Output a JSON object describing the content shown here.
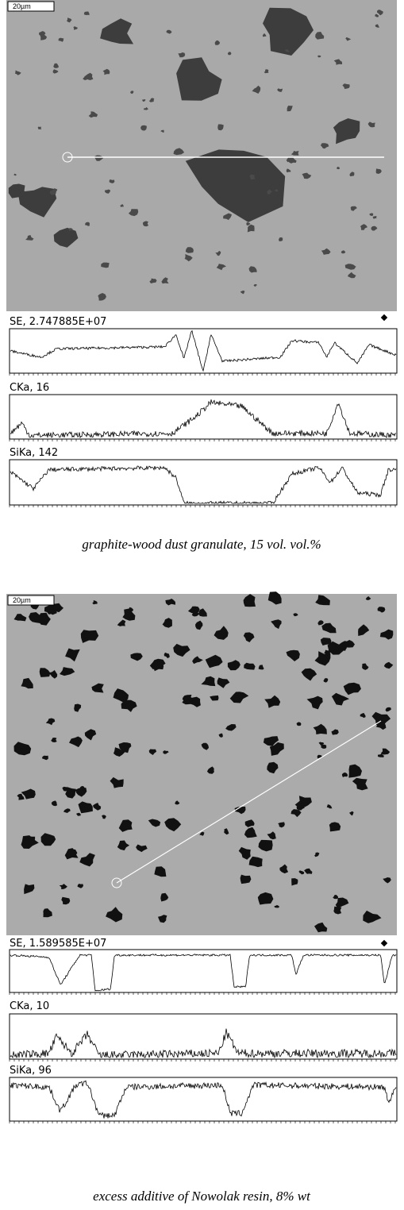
{
  "panels": [
    {
      "scale_label": "20µm",
      "profiles": [
        {
          "label": "SE, 2.747885E+07"
        },
        {
          "label": "CKa, 16"
        },
        {
          "label": "SiKa, 142"
        }
      ],
      "caption": "graphite-wood dust granulate, 15 vol. vol.%"
    },
    {
      "scale_label": "20µm",
      "profiles": [
        {
          "label": "SE, 1.589585E+07"
        },
        {
          "label": "CKa, 10"
        },
        {
          "label": "SiKa, 96"
        }
      ],
      "caption": "excess additive of Nowolak resin, 8% wt"
    }
  ]
}
